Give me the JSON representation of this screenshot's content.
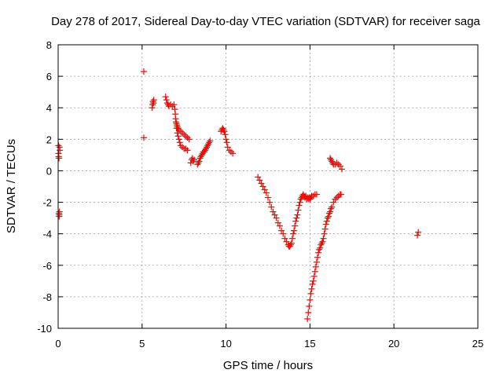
{
  "chart_data": {
    "type": "scatter",
    "title": "Day 278 of 2017, Sidereal Day-to-day VTEC variation (SDTVAR) for receiver saga",
    "xlabel": "GPS time / hours",
    "ylabel": "SDTVAR / TECUs",
    "xlim": [
      0,
      25
    ],
    "ylim": [
      -10,
      8
    ],
    "xticks": [
      0,
      5,
      10,
      15,
      20,
      25
    ],
    "yticks": [
      -10,
      -8,
      -6,
      -4,
      -2,
      0,
      2,
      4,
      6,
      8
    ],
    "xtick_labels": [
      "0",
      "5",
      "10",
      "15",
      "20",
      "25"
    ],
    "ytick_labels": [
      "-10",
      "-8",
      "-6",
      "-4",
      "-2",
      "0",
      "2",
      "4",
      "6",
      "8"
    ],
    "grid": true,
    "marker": "plus",
    "color": "#ff0000",
    "series": [
      {
        "x": [
          0.02,
          0.02,
          0.03,
          0.05,
          0.05,
          0.06,
          0.06,
          0.08,
          0.08,
          0.1,
          5.1,
          5.1,
          5.6,
          5.62,
          5.65,
          5.68,
          5.7,
          6.4,
          6.45,
          6.5,
          6.55,
          6.6,
          6.7,
          6.8,
          6.9,
          6.95,
          6.98,
          7.0,
          7.02,
          7.05,
          7.08,
          7.1,
          7.15,
          7.2,
          7.3,
          7.4,
          7.5,
          7.6,
          7.7,
          7.8,
          7.05,
          7.1,
          7.15,
          7.2,
          7.25,
          7.3,
          7.4,
          7.5,
          7.6,
          7.7,
          7.9,
          7.95,
          8.0,
          8.05,
          8.1,
          8.3,
          8.35,
          8.4,
          8.45,
          8.5,
          8.55,
          8.6,
          8.65,
          8.7,
          8.75,
          8.8,
          8.85,
          8.9,
          8.95,
          9.0,
          9.05,
          9.7,
          9.75,
          9.8,
          9.85,
          9.9,
          9.95,
          10.0,
          10.05,
          10.1,
          10.2,
          10.3,
          10.4,
          11.9,
          12.0,
          12.1,
          12.2,
          12.3,
          12.4,
          12.5,
          12.6,
          12.7,
          12.8,
          12.9,
          13.0,
          13.1,
          13.2,
          13.3,
          13.4,
          13.5,
          13.6,
          13.7,
          13.75,
          13.8,
          13.85,
          13.9,
          13.95,
          14.0,
          14.05,
          14.1,
          14.15,
          14.2,
          14.25,
          14.3,
          14.35,
          14.4,
          14.45,
          14.5,
          14.55,
          14.6,
          14.65,
          14.7,
          14.75,
          14.8,
          14.85,
          14.9,
          14.95,
          15.0,
          15.05,
          15.1,
          15.2,
          15.3,
          15.4,
          14.85,
          14.9,
          14.95,
          15.0,
          15.05,
          15.1,
          15.15,
          15.2,
          15.25,
          15.3,
          15.35,
          15.4,
          15.45,
          15.5,
          15.55,
          15.6,
          15.65,
          15.7,
          15.75,
          15.8,
          15.85,
          15.9,
          15.95,
          16.0,
          16.05,
          16.1,
          16.15,
          16.2,
          16.25,
          16.3,
          16.4,
          16.5,
          16.6,
          16.7,
          16.8,
          16.85,
          16.2,
          16.25,
          16.3,
          16.35,
          16.4,
          16.5,
          16.6,
          16.7,
          16.8,
          16.9,
          21.4,
          21.45
        ],
        "y": [
          1.6,
          1.1,
          0.9,
          0.8,
          -2.7,
          -2.9,
          -2.8,
          -2.6,
          1.5,
          1.3,
          6.3,
          2.1,
          4.0,
          4.2,
          4.4,
          4.3,
          4.5,
          4.7,
          4.5,
          4.3,
          4.2,
          4.1,
          4.2,
          4.1,
          4.2,
          3.9,
          3.6,
          3.3,
          3.1,
          3.0,
          2.9,
          2.8,
          2.7,
          2.6,
          2.5,
          2.4,
          2.3,
          2.2,
          2.1,
          2.0,
          2.7,
          2.4,
          2.2,
          2.0,
          1.8,
          1.6,
          1.5,
          1.4,
          1.4,
          1.3,
          0.5,
          0.7,
          0.8,
          0.6,
          0.7,
          0.4,
          0.5,
          0.6,
          0.8,
          0.9,
          1.0,
          1.1,
          1.2,
          1.2,
          1.3,
          1.4,
          1.5,
          1.6,
          1.7,
          1.8,
          1.9,
          2.5,
          2.6,
          2.7,
          2.6,
          2.5,
          2.3,
          2.0,
          1.8,
          1.5,
          1.3,
          1.2,
          1.1,
          -0.4,
          -0.6,
          -0.8,
          -1.0,
          -1.2,
          -1.4,
          -1.7,
          -2.0,
          -2.3,
          -2.6,
          -2.8,
          -3.0,
          -3.3,
          -3.5,
          -3.8,
          -4.0,
          -4.3,
          -4.5,
          -4.7,
          -4.8,
          -4.8,
          -4.7,
          -4.6,
          -4.3,
          -4.0,
          -3.8,
          -3.5,
          -3.2,
          -3.0,
          -2.8,
          -2.5,
          -2.2,
          -2.0,
          -1.8,
          -1.7,
          -1.6,
          -1.5,
          -1.6,
          -1.7,
          -1.6,
          -1.8,
          -1.7,
          -1.8,
          -1.7,
          -1.8,
          -1.7,
          -1.6,
          -1.6,
          -1.5,
          -1.5,
          -9.4,
          -9.0,
          -8.6,
          -8.2,
          -7.8,
          -7.5,
          -7.2,
          -7.0,
          -6.7,
          -6.4,
          -6.1,
          -5.8,
          -5.5,
          -5.2,
          -5.0,
          -4.9,
          -4.7,
          -4.6,
          -4.5,
          -4.3,
          -4.0,
          -3.7,
          -3.4,
          -3.2,
          -3.0,
          -2.9,
          -2.7,
          -2.6,
          -2.4,
          -2.3,
          -2.0,
          -1.8,
          -1.7,
          -1.6,
          -1.5,
          -1.5,
          0.8,
          0.7,
          0.6,
          0.5,
          0.4,
          0.4,
          0.5,
          0.4,
          0.3,
          0.1,
          -4.1,
          -3.9
        ]
      }
    ]
  }
}
